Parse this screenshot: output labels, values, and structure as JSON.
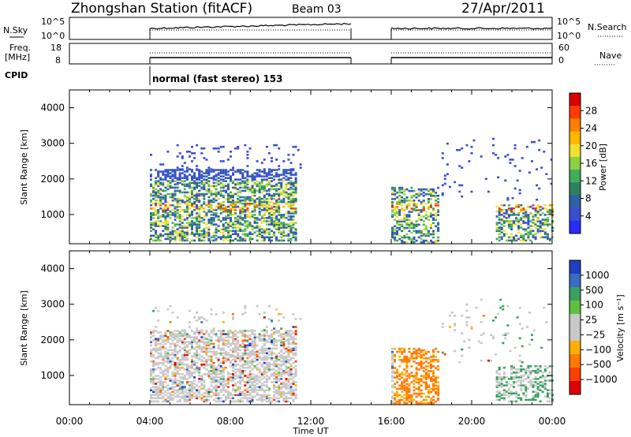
{
  "header": {
    "station": "Zhongshan Station (fitACF)",
    "beam": "Beam 03",
    "date": "27/Apr/2011"
  },
  "strip": {
    "nsky_label": "N.Sky",
    "nsearch_label": "N.Search",
    "nsky_ticks": [
      "10^5",
      "10^0"
    ],
    "nsky_right_ticks": [
      "10^5",
      "10^0"
    ],
    "freq_label_1": "Freq.",
    "freq_label_2": "[MHz]",
    "freq_ticks": [
      "18",
      "8"
    ],
    "nave_label": "Nave",
    "nave_ticks": [
      "60",
      "0"
    ],
    "cpid_label": "CPID",
    "mode_text": "normal (fast stereo) 153"
  },
  "chart_data": [
    {
      "type": "heatmap",
      "panel": "power",
      "ylabel": "Slant Range [km]",
      "xlabel": "",
      "ylim": [
        180,
        4500
      ],
      "y_ticks": [
        1000,
        2000,
        3000,
        4000
      ],
      "colorbar_label": "Power [dB]",
      "colorbar_ticks": [
        "28",
        "24",
        "20",
        "16",
        "12",
        "8",
        "4"
      ],
      "colorbar_colors": [
        "#d90000",
        "#ff3c00",
        "#ff7e00",
        "#ffb800",
        "#f0e030",
        "#8ad040",
        "#3fae5a",
        "#2f8060",
        "#2f5fa8",
        "#3a4fd0",
        "#2a2aff"
      ],
      "data_windows_hours": [
        [
          4.0,
          14.0
        ],
        [
          16.0,
          24.0
        ]
      ]
    },
    {
      "type": "heatmap",
      "panel": "velocity",
      "ylabel": "Slant Range [km]",
      "xlabel": "Time UT",
      "ylim": [
        180,
        4500
      ],
      "y_ticks": [
        1000,
        2000,
        3000,
        4000
      ],
      "x_ticks": [
        "00:00",
        "04:00",
        "08:00",
        "12:00",
        "16:00",
        "20:00",
        "00:00"
      ],
      "colorbar_label": "Velocity [m s⁻¹]",
      "colorbar_ticks": [
        "1000",
        "500",
        "100",
        "25",
        "−25",
        "−100",
        "−500",
        "−1000"
      ],
      "colorbar_colors": [
        "#2040c0",
        "#3a6cc0",
        "#3aa060",
        "#60c040",
        "#c8c8c8",
        "#c8c8c8",
        "#ffb000",
        "#ff7a00",
        "#ff4000",
        "#e00000"
      ]
    }
  ]
}
